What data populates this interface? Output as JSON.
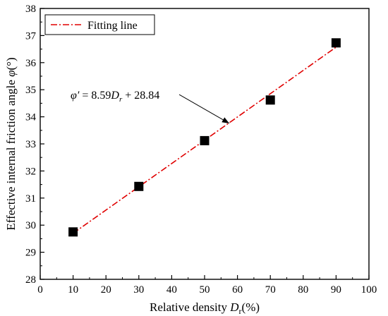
{
  "chart_data": {
    "type": "scatter",
    "xlabel": "Relative density",
    "xlabel_symbol": "D",
    "xlabel_sub": "r",
    "xlabel_unit": "(%)",
    "ylabel": "Effective internal friction angle",
    "ylabel_symbol": "φ",
    "ylabel_unit": "(°)",
    "xlim": [
      0,
      100
    ],
    "ylim": [
      28,
      38
    ],
    "xticks": [
      0,
      10,
      20,
      30,
      40,
      50,
      60,
      70,
      80,
      90,
      100
    ],
    "yticks": [
      28,
      29,
      30,
      31,
      32,
      33,
      34,
      35,
      36,
      37,
      38
    ],
    "series": [
      {
        "marker": "square",
        "color": "#000000",
        "x": [
          10,
          30,
          50,
          70,
          90
        ],
        "y": [
          29.75,
          31.43,
          33.12,
          34.62,
          36.73
        ]
      }
    ],
    "fit": {
      "name": "Fitting line",
      "style": "dash-dot",
      "color": "#e00000",
      "slope_per_percent": 0.0859,
      "intercept": 28.84,
      "x_range": [
        10,
        90
      ]
    },
    "equation": {
      "lhs": "φ′",
      "eq": " = 8.59",
      "var": "D",
      "sub": "r",
      "rest": " + 28.84",
      "arrow_to": [
        57.5,
        33.76
      ]
    },
    "legend_position": "top-left",
    "grid": false
  }
}
